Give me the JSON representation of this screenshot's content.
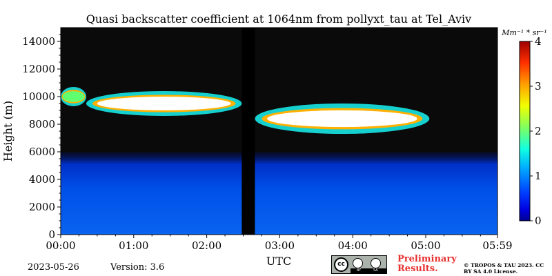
{
  "chart_data": {
    "type": "heatmap",
    "title": "Quasi backscatter coefficient at 1064nm from pollyxt_tau at Tel_Aviv",
    "xlabel": "UTC",
    "ylabel": "Height (m)",
    "x_range_hours": [
      0,
      5.983
    ],
    "ylim": [
      0,
      15000
    ],
    "xticks": [
      {
        "value": 0,
        "label": "00:00"
      },
      {
        "value": 1,
        "label": "01:00"
      },
      {
        "value": 2,
        "label": "02:00"
      },
      {
        "value": 3,
        "label": "03:00"
      },
      {
        "value": 4,
        "label": "04:00"
      },
      {
        "value": 5,
        "label": "05:00"
      },
      {
        "value": 5.983,
        "label": "05:59"
      }
    ],
    "yticks": [
      {
        "value": 0,
        "label": "0"
      },
      {
        "value": 2000,
        "label": "2000"
      },
      {
        "value": 4000,
        "label": "4000"
      },
      {
        "value": 6000,
        "label": "6000"
      },
      {
        "value": 8000,
        "label": "8000"
      },
      {
        "value": 10000,
        "label": "10000"
      },
      {
        "value": 12000,
        "label": "12000"
      },
      {
        "value": 14000,
        "label": "14000"
      }
    ],
    "colorbar": {
      "label": "Mm⁻¹ * sr⁻¹",
      "range": [
        0,
        4
      ],
      "ticks": [
        {
          "value": 0,
          "label": "0"
        },
        {
          "value": 1,
          "label": "1"
        },
        {
          "value": 2,
          "label": "2"
        },
        {
          "value": 3,
          "label": "3"
        },
        {
          "value": 4,
          "label": "4"
        }
      ]
    },
    "data_gap_hours": [
      2.48,
      2.66
    ],
    "features": [
      {
        "name": "boundary-layer",
        "start_h": 0,
        "end_h": 5.98,
        "base_m": 0,
        "top_m": 6000,
        "value": 0.6
      },
      {
        "name": "cloud-a",
        "start_h": 0.0,
        "end_h": 0.35,
        "base_m": 9300,
        "top_m": 10700,
        "value": 2.2
      },
      {
        "name": "cloud-b",
        "start_h": 0.35,
        "end_h": 2.48,
        "base_m": 8600,
        "top_m": 10400,
        "value": 4
      },
      {
        "name": "cloud-c",
        "start_h": 2.66,
        "end_h": 5.05,
        "base_m": 7300,
        "top_m": 9500,
        "value": 4
      }
    ]
  },
  "footer": {
    "date": "2023-05-26",
    "version": "Version: 3.6",
    "preliminary": "Preliminary Results.",
    "copyright": "© TROPOS & TAU 2023. CC BY SA 4.0 License.",
    "cc_logo": {
      "cc": "cc",
      "by": "BY",
      "sa": "SA"
    }
  }
}
